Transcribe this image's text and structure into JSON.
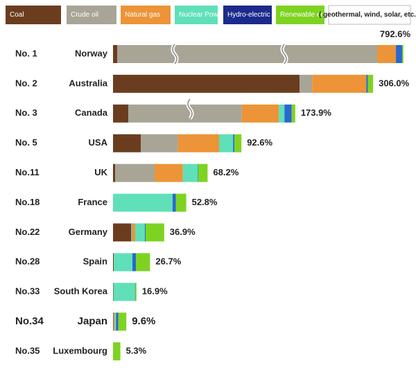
{
  "chart_data": {
    "type": "stacked-bar",
    "ranks": [
      "No. 1",
      "No. 2",
      "No. 3",
      "No. 5",
      "No.11",
      "No.18",
      "No.22",
      "No.28",
      "No.33",
      "No.34",
      "No.35"
    ],
    "categories": [
      "Norway",
      "Australia",
      "Canada",
      "USA",
      "UK",
      "France",
      "Germany",
      "Spain",
      "South Korea",
      "Japan",
      "Luxembourg"
    ],
    "highlight_category": "Japan",
    "highlight_color": "#e02a1e",
    "series": [
      {
        "name": "Coal",
        "color": "#6b3d1f",
        "values": [
          3,
          181.3,
          11.1,
          20.1,
          1.5,
          0,
          13.0,
          0.5,
          0.3,
          0.4,
          0
        ]
      },
      {
        "name": "Crude oil",
        "color": "#a8a596",
        "values": [
          370,
          21.3,
          81.8,
          26.7,
          28.5,
          0,
          1.0,
          0,
          0,
          0.3,
          0
        ]
      },
      {
        "name": "Natural gas",
        "color": "#ec9437",
        "values": [
          300,
          91.9,
          53.1,
          29.7,
          20.4,
          0,
          2.0,
          0,
          0,
          0.6,
          0
        ]
      },
      {
        "name": "Nuclear Power",
        "color": "#5fe0b8",
        "values": [
          0,
          0,
          9.6,
          10.1,
          10.7,
          43.0,
          7.0,
          13.5,
          15.6,
          0.9,
          0
        ]
      },
      {
        "name": "Hydro-electric",
        "color": "#2a68cf",
        "values": [
          100,
          2.5,
          12.1,
          1.0,
          0.3,
          2.4,
          0.5,
          2.5,
          0.2,
          1.6,
          0
        ]
      },
      {
        "name": "Renewable energy",
        "color": "#7ed321",
        "values": [
          19.6,
          9.0,
          6.2,
          5.0,
          6.8,
          7.4,
          13.4,
          10.2,
          0.8,
          5.8,
          5.3
        ]
      }
    ],
    "legend_note": "( geothermal, wind, solar, etc. )",
    "totals": [
      792.6,
      306.0,
      173.9,
      92.6,
      68.2,
      52.8,
      36.9,
      26.7,
      16.9,
      9.6,
      5.3
    ],
    "total_labels": [
      "792.6%",
      "306.0%",
      "173.9%",
      "92.6%",
      "68.2%",
      "52.8%",
      "36.9%",
      "26.7%",
      "16.9%",
      "9.6%",
      "5.3%"
    ]
  }
}
